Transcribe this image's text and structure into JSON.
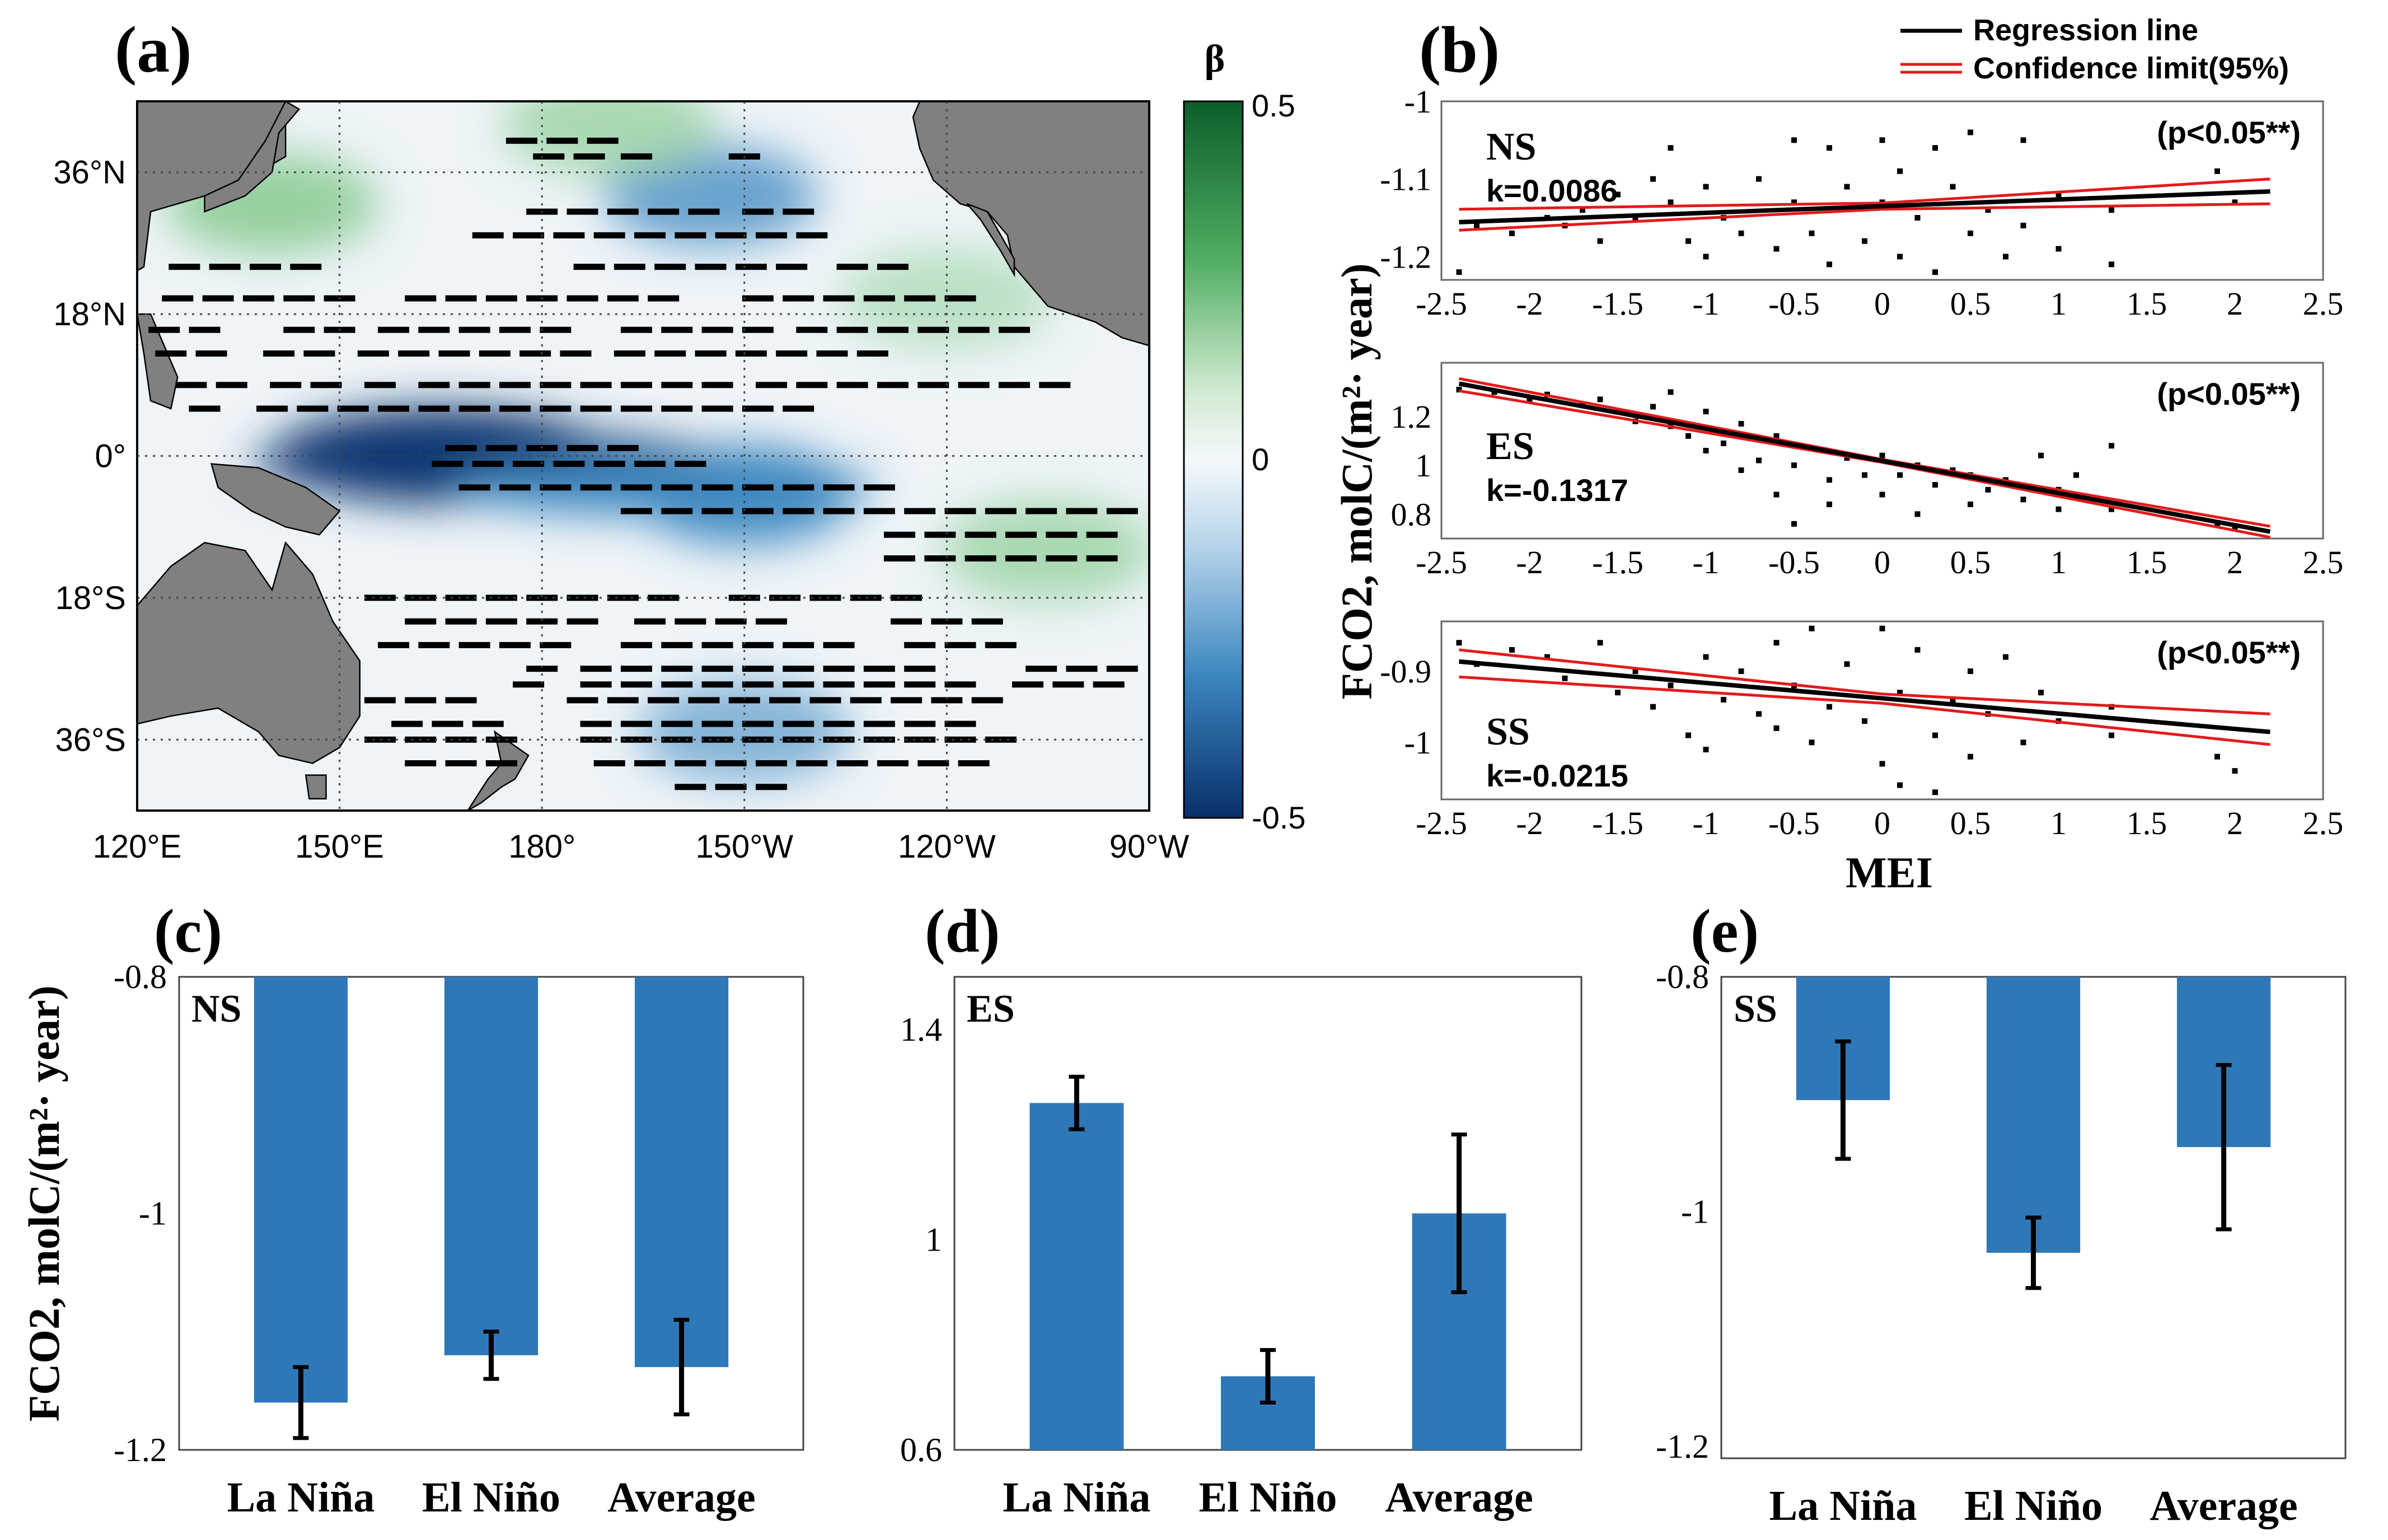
{
  "colors": {
    "land": "#808080",
    "bar": "#2e78b8",
    "regression": "#000000",
    "confidence": "#e41a1c",
    "cmap_pos": "#0b5e2a",
    "cmap_neg": "#08306b",
    "cmap_zero": "#f4f8fb"
  },
  "panel_a": {
    "label": "(a)",
    "x_ticks": [
      "120°E",
      "150°E",
      "180°",
      "150°W",
      "120°W",
      "90°W"
    ],
    "y_ticks": [
      "36°N",
      "18°N",
      "0°",
      "18°S",
      "36°S"
    ],
    "colorbar": {
      "title": "β",
      "ticks": [
        "0.5",
        "0",
        "-0.5"
      ],
      "range": [
        -0.5,
        0.5
      ]
    }
  },
  "panel_b": {
    "label": "(b)",
    "legend": [
      "Regression line",
      "Confidence limit(95%)"
    ],
    "ylabel": "FCO2, molC/(m²· year)",
    "xlabel": "MEI",
    "x_tick_labels": [
      "-2.5",
      "-2",
      "-1.5",
      "-1",
      "-0.5",
      "0",
      "0.5",
      "1",
      "1.5",
      "2",
      "2.5"
    ]
  },
  "panel_c": {
    "label": "(c)",
    "ylabel": "FCO2, molC/(m²· year)"
  },
  "panel_d": {
    "label": "(d)"
  },
  "panel_e": {
    "label": "(e)"
  },
  "chart_data": [
    {
      "type": "heatmap",
      "panel": "(a)",
      "colorbar_label": "β",
      "zmin": -0.5,
      "zmax": 0.5,
      "xlim": [
        120,
        270
      ],
      "ylim": [
        -45,
        45
      ],
      "x_ticks": [
        "120°E",
        "150°E",
        "180°",
        "150°W",
        "120°W",
        "90°W"
      ],
      "y_ticks": [
        "36°N",
        "18°N",
        "0°",
        "18°S",
        "36°S"
      ],
      "grid": true,
      "features": [
        {
          "lon": 165,
          "lat": 0,
          "value": -0.5,
          "desc": "equatorial central Pacific minimum"
        },
        {
          "lon": 210,
          "lat": -5,
          "value": -0.3
        },
        {
          "lon": 210,
          "lat": -35,
          "value": -0.2
        },
        {
          "lon": 205,
          "lat": 33,
          "value": -0.25
        },
        {
          "lon": 190,
          "lat": 42,
          "value": 0.2
        },
        {
          "lon": 140,
          "lat": 32,
          "value": 0.25
        },
        {
          "lon": 255,
          "lat": -12,
          "value": 0.2
        },
        {
          "lon": 240,
          "lat": 20,
          "value": 0.15
        }
      ]
    },
    {
      "type": "scatter",
      "panel": "(b)",
      "region": "NS",
      "slope_label": "k=0.0086",
      "p_label": "(p<0.05**)",
      "xlim": [
        -2.5,
        2.5
      ],
      "ylim": [
        -1.23,
        -1.0
      ],
      "y_ticks": [
        "-1",
        "-1.1",
        "-1.2"
      ],
      "regression": {
        "slope": 0.0086,
        "intercept": -1.135
      },
      "confidence_upper": [
        [
          -2.4,
          -1.139
        ],
        [
          0,
          -1.131
        ],
        [
          2.2,
          -1.1
        ]
      ],
      "confidence_lower": [
        [
          -2.4,
          -1.166
        ],
        [
          0,
          -1.139
        ],
        [
          2.2,
          -1.132
        ]
      ],
      "points": [
        [
          -2.4,
          -1.22
        ],
        [
          -2.3,
          -1.16
        ],
        [
          -2.1,
          -1.17
        ],
        [
          -1.9,
          -1.15
        ],
        [
          -1.8,
          -1.16
        ],
        [
          -1.7,
          -1.14
        ],
        [
          -1.6,
          -1.18
        ],
        [
          -1.5,
          -1.12
        ],
        [
          -1.4,
          -1.15
        ],
        [
          -1.3,
          -1.1
        ],
        [
          -1.2,
          -1.06
        ],
        [
          -1.2,
          -1.13
        ],
        [
          -1.1,
          -1.18
        ],
        [
          -1.0,
          -1.2
        ],
        [
          -1.0,
          -1.11
        ],
        [
          -0.9,
          -1.15
        ],
        [
          -0.8,
          -1.17
        ],
        [
          -0.7,
          -1.1
        ],
        [
          -0.6,
          -1.19
        ],
        [
          -0.5,
          -1.05
        ],
        [
          -0.5,
          -1.13
        ],
        [
          -0.4,
          -1.17
        ],
        [
          -0.3,
          -1.06
        ],
        [
          -0.3,
          -1.21
        ],
        [
          -0.2,
          -1.11
        ],
        [
          -0.1,
          -1.18
        ],
        [
          0.0,
          -1.05
        ],
        [
          0.0,
          -1.13
        ],
        [
          0.1,
          -1.09
        ],
        [
          0.1,
          -1.2
        ],
        [
          0.2,
          -1.15
        ],
        [
          0.3,
          -1.06
        ],
        [
          0.3,
          -1.22
        ],
        [
          0.4,
          -1.11
        ],
        [
          0.5,
          -1.17
        ],
        [
          0.5,
          -1.04
        ],
        [
          0.6,
          -1.14
        ],
        [
          0.7,
          -1.2
        ],
        [
          0.8,
          -1.05
        ],
        [
          0.8,
          -1.16
        ],
        [
          1.0,
          -1.12
        ],
        [
          1.0,
          -1.19
        ],
        [
          1.3,
          -1.14
        ],
        [
          1.3,
          -1.21
        ],
        [
          1.9,
          -1.09
        ],
        [
          2.0,
          -1.13
        ]
      ]
    },
    {
      "type": "scatter",
      "panel": "(b)",
      "region": "ES",
      "slope_label": "k=-0.1317",
      "p_label": "(p<0.05**)",
      "xlim": [
        -2.5,
        2.5
      ],
      "ylim": [
        0.7,
        1.42
      ],
      "y_ticks": [
        "1.2",
        "1",
        "0.8"
      ],
      "regression": {
        "slope": -0.1317,
        "intercept": 1.018
      },
      "confidence_upper": [
        [
          -2.4,
          1.355
        ],
        [
          0,
          1.024
        ],
        [
          2.2,
          0.75
        ]
      ],
      "confidence_lower": [
        [
          -2.4,
          1.305
        ],
        [
          0,
          1.012
        ],
        [
          2.2,
          0.705
        ]
      ],
      "points": [
        [
          -2.4,
          1.31
        ],
        [
          -2.2,
          1.3
        ],
        [
          -2.0,
          1.27
        ],
        [
          -1.9,
          1.29
        ],
        [
          -1.7,
          1.25
        ],
        [
          -1.6,
          1.27
        ],
        [
          -1.5,
          1.22
        ],
        [
          -1.4,
          1.18
        ],
        [
          -1.3,
          1.24
        ],
        [
          -1.2,
          1.16
        ],
        [
          -1.2,
          1.3
        ],
        [
          -1.1,
          1.12
        ],
        [
          -1.0,
          1.06
        ],
        [
          -1.0,
          1.22
        ],
        [
          -0.9,
          1.09
        ],
        [
          -0.8,
          0.98
        ],
        [
          -0.8,
          1.17
        ],
        [
          -0.7,
          1.02
        ],
        [
          -0.6,
          0.88
        ],
        [
          -0.6,
          1.12
        ],
        [
          -0.5,
          0.76
        ],
        [
          -0.5,
          1.0
        ],
        [
          -0.4,
          1.07
        ],
        [
          -0.3,
          0.94
        ],
        [
          -0.3,
          0.84
        ],
        [
          -0.2,
          1.03
        ],
        [
          -0.1,
          0.96
        ],
        [
          0.0,
          0.88
        ],
        [
          0.0,
          1.04
        ],
        [
          0.1,
          0.96
        ],
        [
          0.2,
          0.8
        ],
        [
          0.2,
          1.0
        ],
        [
          0.3,
          0.92
        ],
        [
          0.4,
          0.98
        ],
        [
          0.5,
          0.84
        ],
        [
          0.5,
          0.96
        ],
        [
          0.6,
          0.9
        ],
        [
          0.7,
          0.94
        ],
        [
          0.8,
          0.86
        ],
        [
          0.9,
          1.04
        ],
        [
          1.0,
          0.82
        ],
        [
          1.0,
          0.9
        ],
        [
          1.1,
          0.96
        ],
        [
          1.3,
          0.82
        ],
        [
          1.3,
          1.08
        ],
        [
          1.9,
          0.76
        ],
        [
          2.0,
          0.74
        ]
      ]
    },
    {
      "type": "scatter",
      "panel": "(b)",
      "region": "SS",
      "slope_label": "k=-0.0215",
      "p_label": "(p<0.05**)",
      "xlim": [
        -2.5,
        2.5
      ],
      "ylim": [
        -1.08,
        -0.83
      ],
      "y_ticks": [
        "-0.9",
        "-1"
      ],
      "regression": {
        "slope": -0.0215,
        "intercept": -0.938
      },
      "confidence_upper": [
        [
          -2.4,
          -0.87
        ],
        [
          0,
          -0.932
        ],
        [
          2.2,
          -0.96
        ]
      ],
      "confidence_lower": [
        [
          -2.4,
          -0.908
        ],
        [
          0,
          -0.945
        ],
        [
          2.2,
          -1.003
        ]
      ],
      "points": [
        [
          -2.4,
          -0.86
        ],
        [
          -2.3,
          -0.89
        ],
        [
          -2.1,
          -0.87
        ],
        [
          -1.9,
          -0.88
        ],
        [
          -1.8,
          -0.91
        ],
        [
          -1.6,
          -0.86
        ],
        [
          -1.5,
          -0.93
        ],
        [
          -1.4,
          -0.9
        ],
        [
          -1.3,
          -0.95
        ],
        [
          -1.2,
          -0.92
        ],
        [
          -1.1,
          -0.99
        ],
        [
          -1.0,
          -0.88
        ],
        [
          -1.0,
          -1.01
        ],
        [
          -0.9,
          -0.94
        ],
        [
          -0.8,
          -0.9
        ],
        [
          -0.7,
          -0.96
        ],
        [
          -0.6,
          -0.86
        ],
        [
          -0.6,
          -0.98
        ],
        [
          -0.5,
          -0.92
        ],
        [
          -0.4,
          -0.84
        ],
        [
          -0.4,
          -1.0
        ],
        [
          -0.3,
          -0.95
        ],
        [
          -0.2,
          -0.89
        ],
        [
          -0.1,
          -0.97
        ],
        [
          0.0,
          -0.84
        ],
        [
          0.0,
          -1.03
        ],
        [
          0.1,
          -0.93
        ],
        [
          0.1,
          -1.06
        ],
        [
          0.2,
          -0.87
        ],
        [
          0.3,
          -0.99
        ],
        [
          0.3,
          -1.07
        ],
        [
          0.4,
          -0.94
        ],
        [
          0.5,
          -0.9
        ],
        [
          0.5,
          -1.02
        ],
        [
          0.6,
          -0.96
        ],
        [
          0.7,
          -0.88
        ],
        [
          0.8,
          -1.0
        ],
        [
          0.9,
          -0.93
        ],
        [
          1.0,
          -0.97
        ],
        [
          1.3,
          -0.95
        ],
        [
          1.3,
          -0.99
        ],
        [
          1.9,
          -1.02
        ],
        [
          2.0,
          -1.04
        ]
      ]
    },
    {
      "type": "bar",
      "panel": "(c)",
      "region": "NS",
      "categories": [
        "La Niña",
        "El Niño",
        "Average"
      ],
      "values": [
        -1.16,
        -1.12,
        -1.13
      ],
      "errors": [
        0.03,
        0.02,
        0.04
      ],
      "ylim": [
        -1.2,
        -0.8
      ],
      "y_ticks": [
        "-0.8",
        "-1",
        "-1.2"
      ],
      "ylabel": "FCO2, molC/(m²· year)"
    },
    {
      "type": "bar",
      "panel": "(d)",
      "region": "ES",
      "categories": [
        "La Niña",
        "El Niño",
        "Average"
      ],
      "values": [
        1.26,
        0.74,
        1.05
      ],
      "errors": [
        0.05,
        0.05,
        0.15
      ],
      "ylim": [
        0.6,
        1.5
      ],
      "y_ticks": [
        "1.4",
        "1",
        "0.6"
      ]
    },
    {
      "type": "bar",
      "panel": "(e)",
      "region": "SS",
      "categories": [
        "La Niña",
        "El Niño",
        "Average"
      ],
      "values": [
        -0.905,
        -1.035,
        -0.945
      ],
      "errors": [
        0.05,
        0.03,
        0.07
      ],
      "ylim": [
        -1.21,
        -0.8
      ],
      "y_ticks": [
        "-0.8",
        "-1",
        "-1.2"
      ]
    }
  ]
}
